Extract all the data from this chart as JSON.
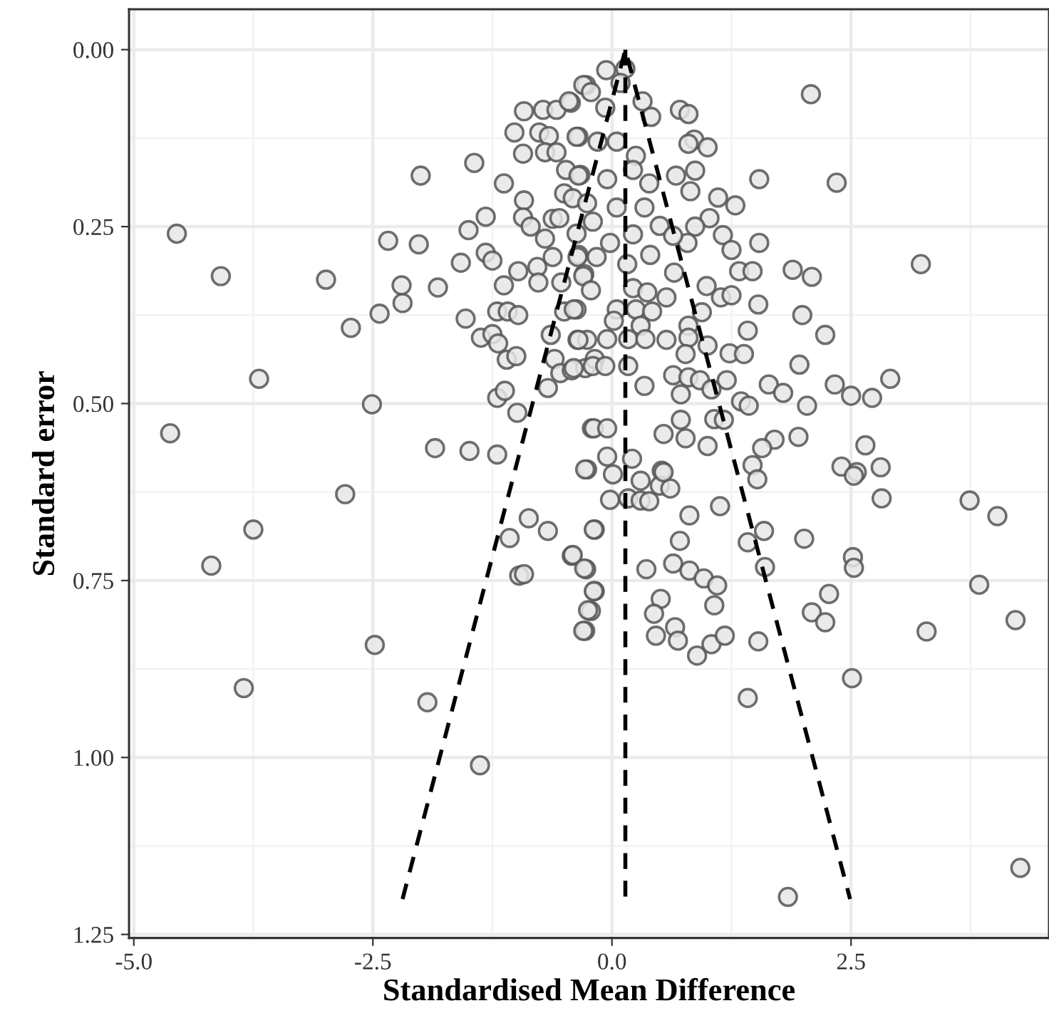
{
  "chart_data": {
    "type": "scatter",
    "xlabel": "Standardised Mean Difference",
    "ylabel": "Standard error",
    "xlim": [
      -5.05,
      4.57
    ],
    "ylim": [
      1.255,
      -0.057
    ],
    "xticks": [
      {
        "value": -5.0,
        "label": "-5.0"
      },
      {
        "value": -2.5,
        "label": "-2.5"
      },
      {
        "value": 0.0,
        "label": "0.0"
      },
      {
        "value": 2.5,
        "label": "2.5"
      }
    ],
    "yticks": [
      {
        "value": 0.0,
        "label": "0.00"
      },
      {
        "value": 0.25,
        "label": "0.25"
      },
      {
        "value": 0.5,
        "label": "0.50"
      },
      {
        "value": 0.75,
        "label": "0.75"
      },
      {
        "value": 1.0,
        "label": "1.00"
      },
      {
        "value": 1.25,
        "label": "1.25"
      }
    ],
    "grid": true,
    "series": [
      {
        "marker": "circle",
        "color": "#555555",
        "x": [
          -4.55,
          -4.09,
          -2.99,
          -2.34,
          -2.02,
          -2.0,
          -1.44,
          -2.2,
          -2.19,
          -1.82,
          -2.43,
          -2.73,
          -3.69,
          -4.62,
          -2.51,
          -1.85,
          -1.49,
          -1.2,
          -1.13,
          -1.5,
          -1.32,
          -1.58,
          -1.32,
          -1.25,
          -1.13,
          -0.98,
          -0.78,
          -0.77,
          -1.53,
          -1.2,
          -1.09,
          -0.98,
          -1.37,
          -1.25,
          -1.19,
          -1.1,
          -1.0,
          -1.2,
          -1.12,
          -0.99,
          -0.67,
          -0.64,
          -0.6,
          -0.54,
          -0.42,
          -0.28,
          -0.36,
          -0.26,
          -0.5,
          -0.37,
          -0.92,
          -0.72,
          -0.58,
          -0.43,
          -0.27,
          -1.02,
          -0.76,
          -0.66,
          -0.93,
          -0.7,
          -0.58,
          -0.48,
          -0.35,
          -0.33,
          -0.92,
          -0.93,
          -0.85,
          -0.62,
          -0.55,
          -0.5,
          -0.41,
          -0.7,
          -0.62,
          -0.37,
          -0.35,
          -0.29,
          -0.53,
          -0.26,
          -0.18,
          -0.21,
          -0.26,
          -0.06,
          0.14,
          -0.3,
          -0.22,
          0.09,
          0.32,
          0.41,
          -0.07,
          0.71,
          0.8,
          2.08,
          0.86,
          1.0,
          0.8,
          -0.45,
          -0.37,
          -0.15,
          0.05,
          0.25,
          -0.35,
          -0.05,
          0.22,
          0.39,
          0.67,
          0.87,
          1.54,
          2.35,
          0.82,
          1.11,
          1.29,
          0.05,
          0.34,
          1.02,
          -0.2,
          0.5,
          0.87,
          1.16,
          1.54,
          1.25,
          0.79,
          0.64,
          -0.02,
          0.22,
          0.4,
          -0.16,
          -0.36,
          0.16,
          1.33,
          1.47,
          1.89,
          2.09,
          3.23,
          0.65,
          -0.3,
          -0.22,
          0.22,
          0.99,
          1.14,
          1.25,
          1.53,
          0.37,
          0.57,
          1.99,
          -0.4,
          0.05,
          0.25,
          0.42,
          0.94,
          1.42,
          2.23,
          0.02,
          0.3,
          0.8,
          0.57,
          0.8,
          1.0,
          -0.35,
          -0.05,
          0.17,
          0.35,
          1.23,
          1.38,
          0.77,
          1.96,
          -0.4,
          -0.2,
          -0.07,
          0.17,
          0.64,
          0.8,
          0.92,
          1.2,
          1.64,
          1.79,
          2.33,
          2.5,
          2.72,
          2.91,
          0.34,
          0.72,
          1.04,
          1.35,
          1.43,
          2.04,
          -0.19,
          -0.05,
          0.54,
          0.72,
          0.77,
          1.0,
          1.07,
          1.17,
          1.7,
          1.57,
          1.95,
          2.65,
          1.47,
          2.4,
          2.56,
          2.81,
          -0.28,
          -0.05,
          0.21,
          0.52,
          -2.79,
          -3.75,
          -4.19,
          -2.48,
          -3.85,
          -1.93,
          -1.38,
          -1.07,
          -0.87,
          -0.67,
          -0.97,
          -0.92,
          -0.42,
          -0.27,
          -0.18,
          -0.22,
          -0.28,
          -0.18,
          0.01,
          -0.02,
          0.17,
          0.3,
          0.39,
          0.3,
          0.5,
          0.61,
          0.54,
          0.81,
          1.13,
          -0.19,
          1.52,
          2.53,
          2.82,
          3.74,
          4.03,
          0.71,
          1.42,
          1.59,
          2.01,
          -0.41,
          -0.29,
          0.36,
          0.64,
          0.81,
          0.96,
          1.1,
          1.07,
          1.6,
          2.52,
          2.53,
          3.84,
          -0.19,
          -0.25,
          -0.3,
          0.51,
          0.44,
          0.66,
          0.46,
          0.69,
          0.89,
          1.04,
          1.18,
          1.53,
          2.27,
          2.09,
          2.23,
          3.29,
          4.22,
          1.42,
          2.51,
          4.27,
          1.84
        ],
        "values": [
          0.26,
          0.32,
          0.325,
          0.27,
          0.275,
          0.178,
          0.16,
          0.333,
          0.358,
          0.336,
          0.373,
          0.393,
          0.465,
          0.542,
          0.501,
          0.563,
          0.567,
          0.572,
          0.189,
          0.255,
          0.236,
          0.301,
          0.287,
          0.298,
          0.333,
          0.313,
          0.307,
          0.329,
          0.38,
          0.37,
          0.37,
          0.375,
          0.407,
          0.402,
          0.415,
          0.438,
          0.433,
          0.492,
          0.482,
          0.513,
          0.478,
          0.403,
          0.437,
          0.457,
          0.453,
          0.45,
          0.41,
          0.41,
          0.37,
          0.367,
          0.087,
          0.085,
          0.085,
          0.075,
          0.05,
          0.117,
          0.117,
          0.122,
          0.147,
          0.145,
          0.145,
          0.17,
          0.123,
          0.177,
          0.213,
          0.237,
          0.25,
          0.239,
          0.238,
          0.203,
          0.21,
          0.267,
          0.293,
          0.26,
          0.29,
          0.317,
          0.329,
          0.217,
          0.437,
          0.535,
          0.593,
          0.029,
          0.027,
          0.05,
          0.06,
          0.047,
          0.073,
          0.095,
          0.082,
          0.085,
          0.091,
          0.063,
          0.127,
          0.138,
          0.133,
          0.073,
          0.123,
          0.13,
          0.13,
          0.15,
          0.178,
          0.183,
          0.17,
          0.189,
          0.178,
          0.171,
          0.183,
          0.188,
          0.2,
          0.209,
          0.22,
          0.223,
          0.223,
          0.238,
          0.243,
          0.249,
          0.25,
          0.262,
          0.273,
          0.283,
          0.273,
          0.263,
          0.273,
          0.261,
          0.29,
          0.293,
          0.293,
          0.303,
          0.313,
          0.313,
          0.311,
          0.321,
          0.303,
          0.315,
          0.32,
          0.34,
          0.337,
          0.334,
          0.35,
          0.347,
          0.36,
          0.343,
          0.35,
          0.375,
          0.367,
          0.367,
          0.367,
          0.37,
          0.371,
          0.397,
          0.403,
          0.383,
          0.39,
          0.39,
          0.41,
          0.407,
          0.418,
          0.41,
          0.409,
          0.409,
          0.409,
          0.429,
          0.43,
          0.43,
          0.445,
          0.45,
          0.447,
          0.447,
          0.447,
          0.46,
          0.463,
          0.467,
          0.467,
          0.473,
          0.485,
          0.473,
          0.489,
          0.492,
          0.465,
          0.475,
          0.487,
          0.48,
          0.497,
          0.503,
          0.503,
          0.535,
          0.535,
          0.543,
          0.523,
          0.549,
          0.56,
          0.522,
          0.523,
          0.551,
          0.563,
          0.547,
          0.559,
          0.587,
          0.589,
          0.597,
          0.59,
          0.593,
          0.575,
          0.578,
          0.595,
          0.628,
          0.678,
          0.729,
          0.841,
          0.902,
          0.922,
          1.011,
          0.69,
          0.662,
          0.68,
          0.743,
          0.741,
          0.715,
          0.734,
          0.765,
          0.793,
          0.821,
          0.678,
          0.6,
          0.636,
          0.634,
          0.637,
          0.638,
          0.609,
          0.616,
          0.62,
          0.597,
          0.658,
          0.645,
          0.678,
          0.607,
          0.602,
          0.634,
          0.637,
          0.659,
          0.694,
          0.696,
          0.68,
          0.691,
          0.714,
          0.733,
          0.734,
          0.726,
          0.736,
          0.747,
          0.757,
          0.785,
          0.731,
          0.717,
          0.732,
          0.756,
          0.765,
          0.792,
          0.821,
          0.776,
          0.797,
          0.816,
          0.828,
          0.835,
          0.856,
          0.84,
          0.828,
          0.836,
          0.769,
          0.795,
          0.809,
          0.822,
          0.806,
          0.916,
          0.888,
          1.156,
          1.197
        ]
      },
      {
        "type": "line",
        "color": "#000000",
        "line_style": "dashed",
        "x": [
          -2.19,
          0.14,
          2.49
        ],
        "values": [
          1.2,
          0.0,
          1.2
        ]
      },
      {
        "type": "line",
        "color": "#000000",
        "line_style": "dashed",
        "x": [
          0.14,
          0.14
        ],
        "values": [
          0.0,
          1.2
        ]
      }
    ]
  }
}
